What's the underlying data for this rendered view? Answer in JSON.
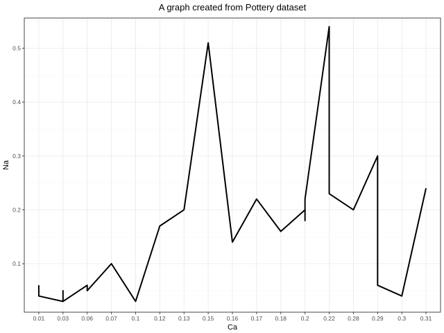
{
  "chart_data": {
    "type": "line",
    "title": "A graph created from Pottery dataset",
    "xlabel": "Ca",
    "ylabel": "Na",
    "x_type": "categorical",
    "categories": [
      "0.01",
      "0.03",
      "0.06",
      "0.07",
      "0.1",
      "0.12",
      "0.13",
      "0.15",
      "0.16",
      "0.17",
      "0.18",
      "0.2",
      "0.22",
      "0.28",
      "0.29",
      "0.3",
      "0.31"
    ],
    "ylim": [
      0.01,
      0.556
    ],
    "yticks": [
      0.1,
      0.2,
      0.3,
      0.4,
      0.5
    ],
    "ytick_labels": [
      "0.1",
      "0.2",
      "0.3",
      "0.4",
      "0.5"
    ],
    "grid": true,
    "series": [
      {
        "color": "#000000",
        "points": [
          {
            "x": "0.01",
            "y": 0.06
          },
          {
            "x": "0.01",
            "y": 0.04
          },
          {
            "x": "0.03",
            "y": 0.03
          },
          {
            "x": "0.03",
            "y": 0.05
          },
          {
            "x": "0.03",
            "y": 0.03
          },
          {
            "x": "0.06",
            "y": 0.06
          },
          {
            "x": "0.06",
            "y": 0.05
          },
          {
            "x": "0.07",
            "y": 0.1
          },
          {
            "x": "0.1",
            "y": 0.03
          },
          {
            "x": "0.12",
            "y": 0.17
          },
          {
            "x": "0.13",
            "y": 0.2
          },
          {
            "x": "0.15",
            "y": 0.51
          },
          {
            "x": "0.16",
            "y": 0.14
          },
          {
            "x": "0.17",
            "y": 0.22
          },
          {
            "x": "0.18",
            "y": 0.16
          },
          {
            "x": "0.2",
            "y": 0.2
          },
          {
            "x": "0.2",
            "y": 0.18
          },
          {
            "x": "0.2",
            "y": 0.22
          },
          {
            "x": "0.22",
            "y": 0.54
          },
          {
            "x": "0.22",
            "y": 0.23
          },
          {
            "x": "0.28",
            "y": 0.2
          },
          {
            "x": "0.29",
            "y": 0.3
          },
          {
            "x": "0.29",
            "y": 0.06
          },
          {
            "x": "0.3",
            "y": 0.04
          },
          {
            "x": "0.31",
            "y": 0.24
          }
        ]
      }
    ]
  }
}
